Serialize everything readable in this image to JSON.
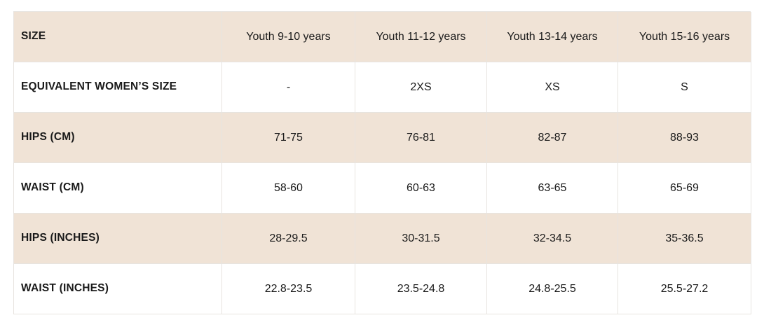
{
  "colors": {
    "header_bg": "#f0e3d6",
    "row_bg": "#ffffff",
    "border": "#e7e4e0",
    "text": "#1a1a1a",
    "page_bg": "#ffffff"
  },
  "chart_data": {
    "type": "table",
    "columns": [
      "SIZE",
      "Youth 9-10 years",
      "Youth 11-12 years",
      "Youth 13-14 years",
      "Youth 15-16 years"
    ],
    "rows": [
      {
        "label": "EQUIVALENT WOMEN’S SIZE",
        "values": [
          "-",
          "2XS",
          "XS",
          "S"
        ]
      },
      {
        "label": "HIPS (CM)",
        "values": [
          "71-75",
          "76-81",
          "82-87",
          "88-93"
        ]
      },
      {
        "label": "WAIST (CM)",
        "values": [
          "58-60",
          "60-63",
          "63-65",
          "65-69"
        ]
      },
      {
        "label": "HIPS (INCHES)",
        "values": [
          "28-29.5",
          "30-31.5",
          "32-34.5",
          "35-36.5"
        ]
      },
      {
        "label": "WAIST (INCHES)",
        "values": [
          "22.8-23.5",
          "23.5-24.8",
          "24.8-25.5",
          "25.5-27.2"
        ]
      }
    ],
    "layout": {
      "header_row_shaded": true,
      "zebra_shading": "header and odd data rows beige, others white",
      "first_column_bold": true,
      "value_alignment": "center",
      "label_alignment": "left"
    }
  }
}
